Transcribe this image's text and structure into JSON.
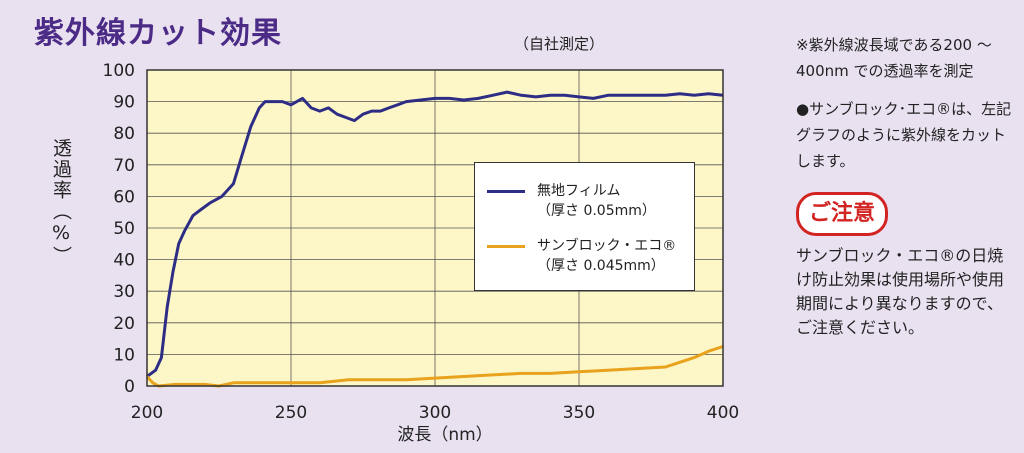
{
  "title": "紫外線カット効果",
  "measure_note": "（自社測定）",
  "legend": {
    "item1_line1": "無地フィルム",
    "item1_line2": "（厚さ 0.05mm）",
    "item2_line1": "サンブロック・エコ®",
    "item2_line2": "（厚さ 0.045mm）"
  },
  "side_note1": "※紫外線波長域である200 ～ 400nm での透過率を測定",
  "side_note2": "●サンブロック･エコ®は、左記グラフのように紫外線をカットします。",
  "caution": {
    "badge": "ご注意",
    "text": "サンブロック・エコ®の日焼け防止効果は使用場所や使用期間により異なりますので、ご注意ください。"
  },
  "colors": {
    "film": "#2e2d85",
    "eco": "#e8a21c",
    "plot_bg": "#fdf7c8",
    "grid": "#555555"
  },
  "chart_data": {
    "type": "line",
    "title": "紫外線カット効果",
    "xlabel": "波長（nm）",
    "ylabel": "透過率（%）",
    "xlim": [
      200,
      400
    ],
    "ylim": [
      0,
      100
    ],
    "xticks": [
      200,
      250,
      300,
      350,
      400
    ],
    "yticks": [
      0,
      10,
      20,
      30,
      40,
      50,
      60,
      70,
      80,
      90,
      100
    ],
    "grid": true,
    "legend_position": "center-right",
    "series": [
      {
        "name": "無地フィルム（厚さ 0.05mm）",
        "x": [
          200,
          203,
          205,
          207,
          209,
          211,
          213,
          216,
          219,
          222,
          226,
          230,
          233,
          236,
          239,
          241,
          244,
          247,
          250,
          252,
          254,
          257,
          260,
          263,
          266,
          269,
          272,
          275,
          278,
          281,
          284,
          287,
          290,
          295,
          300,
          305,
          310,
          315,
          320,
          325,
          330,
          335,
          340,
          345,
          350,
          355,
          360,
          365,
          370,
          375,
          380,
          385,
          390,
          395,
          400
        ],
        "y": [
          3,
          5,
          9,
          25,
          36,
          45,
          49,
          54,
          56,
          58,
          60,
          64,
          73,
          82,
          88,
          90,
          90,
          90,
          89,
          90,
          91,
          88,
          87,
          88,
          86,
          85,
          84,
          86,
          87,
          87,
          88,
          89,
          90,
          90.5,
          91,
          91,
          90.5,
          91,
          92,
          93,
          92,
          91.5,
          92,
          92,
          91.5,
          91,
          92,
          92,
          92,
          92,
          92,
          92.5,
          92,
          92.5,
          92
        ]
      },
      {
        "name": "サンブロック・エコ®（厚さ 0.045mm）",
        "x": [
          200,
          202,
          204,
          210,
          220,
          225,
          230,
          240,
          250,
          260,
          265,
          270,
          280,
          290,
          300,
          310,
          320,
          330,
          340,
          350,
          360,
          370,
          380,
          385,
          390,
          395,
          400
        ],
        "y": [
          3,
          1,
          0,
          0.5,
          0.5,
          0,
          1,
          1,
          1,
          1,
          1.5,
          2,
          2,
          2,
          2.5,
          3,
          3.5,
          4,
          4,
          4.5,
          5,
          5.5,
          6,
          7.5,
          9,
          11,
          12.5
        ]
      }
    ]
  }
}
